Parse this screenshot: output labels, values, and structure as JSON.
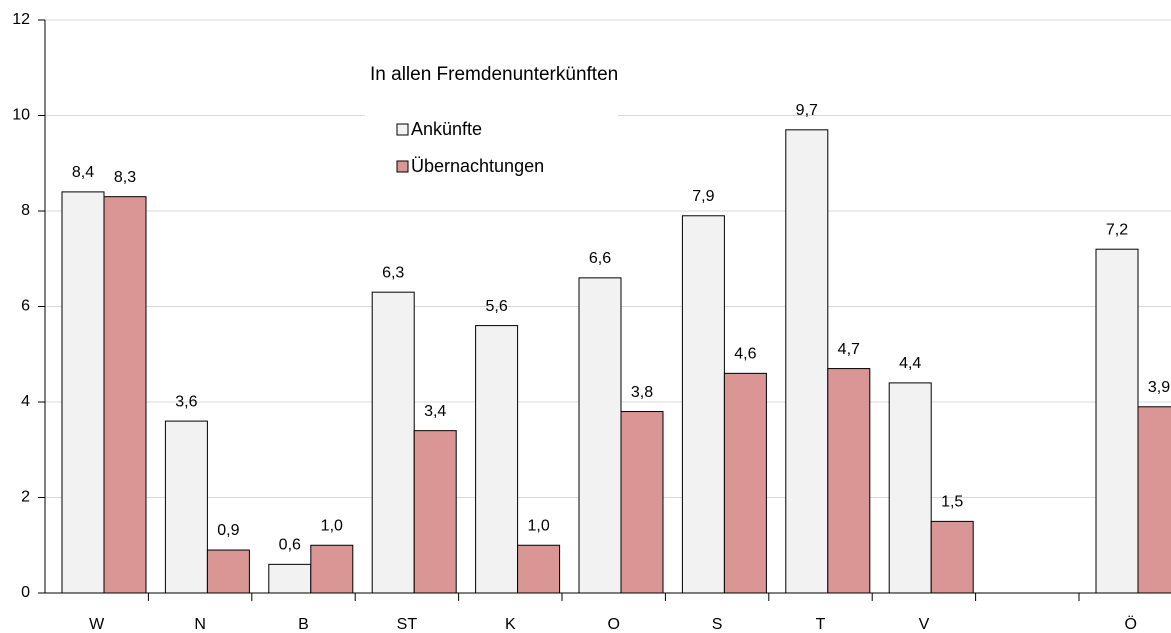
{
  "chart_data": {
    "type": "bar",
    "title": "In allen Fremdenunterkünften",
    "categories": [
      "W",
      "N",
      "B",
      "ST",
      "K",
      "O",
      "S",
      "T",
      "V",
      null,
      "Ö"
    ],
    "series": [
      {
        "name": "Ankünfte",
        "color": "#f2f2f2",
        "values": [
          8.4,
          3.6,
          0.6,
          6.3,
          5.6,
          6.6,
          7.9,
          9.7,
          4.4,
          null,
          7.2
        ],
        "value_labels": [
          "8,4",
          "3,6",
          "0,6",
          "6,3",
          "5,6",
          "6,6",
          "7,9",
          "9,7",
          "4,4",
          null,
          "7,2"
        ]
      },
      {
        "name": "Übernachtungen",
        "color": "#d99694",
        "values": [
          8.3,
          0.9,
          1.0,
          3.4,
          1.0,
          3.8,
          4.6,
          4.7,
          1.5,
          null,
          3.9
        ],
        "value_labels": [
          "8,3",
          "0,9",
          "1,0",
          "3,4",
          "1,0",
          "3,8",
          "4,6",
          "4,7",
          "1,5",
          null,
          "3,9"
        ]
      }
    ],
    "ylim": [
      0,
      12
    ],
    "yticks": [
      0,
      2,
      4,
      6,
      8,
      10,
      12
    ],
    "grid": true,
    "legend": "top"
  }
}
